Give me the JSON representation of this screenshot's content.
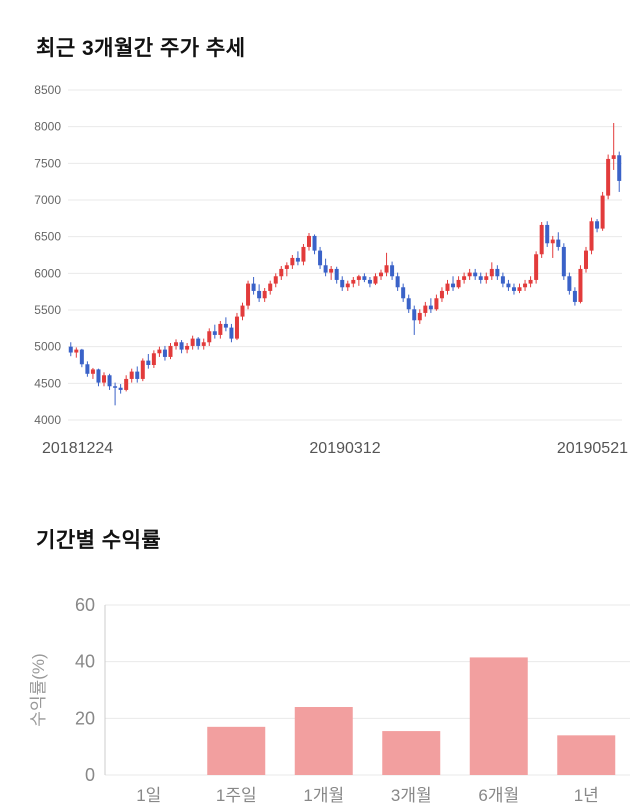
{
  "colors": {
    "grid": "#e9e9e9",
    "axis_line": "#cccccc",
    "price_tick_text": "#666666",
    "date_text": "#555555",
    "bar_tick_text": "#888888",
    "bar_axis_title_text": "#999999"
  },
  "chart_data": [
    {
      "type": "candlestick",
      "title": "최근 3개월간 주가 추세",
      "ylim": [
        4000,
        8500
      ],
      "y_ticks": [
        4000,
        4500,
        5000,
        5500,
        6000,
        6500,
        7000,
        7500,
        8000,
        8500
      ],
      "x_labels": [
        "20181224",
        "20190312",
        "20190521"
      ],
      "up_color": "#e23b3b",
      "down_color": "#3a62c8",
      "ohlc_format": [
        "open",
        "high",
        "low",
        "close"
      ],
      "candles": [
        [
          5000,
          5060,
          4870,
          4920
        ],
        [
          4920,
          4990,
          4850,
          4960
        ],
        [
          4960,
          4970,
          4720,
          4760
        ],
        [
          4760,
          4800,
          4590,
          4630
        ],
        [
          4630,
          4710,
          4560,
          4690
        ],
        [
          4690,
          4700,
          4460,
          4510
        ],
        [
          4510,
          4650,
          4460,
          4610
        ],
        [
          4610,
          4630,
          4410,
          4460
        ],
        [
          4460,
          4510,
          4200,
          4440
        ],
        [
          4440,
          4490,
          4360,
          4410
        ],
        [
          4410,
          4610,
          4390,
          4560
        ],
        [
          4560,
          4700,
          4510,
          4660
        ],
        [
          4660,
          4730,
          4510,
          4560
        ],
        [
          4560,
          4840,
          4530,
          4810
        ],
        [
          4810,
          4900,
          4700,
          4750
        ],
        [
          4750,
          4950,
          4710,
          4910
        ],
        [
          4910,
          5000,
          4860,
          4960
        ],
        [
          4960,
          5010,
          4810,
          4860
        ],
        [
          4860,
          5050,
          4830,
          5010
        ],
        [
          5010,
          5100,
          4960,
          5060
        ],
        [
          5060,
          5090,
          4910,
          4960
        ],
        [
          4960,
          5050,
          4910,
          5010
        ],
        [
          5010,
          5150,
          4960,
          5110
        ],
        [
          5110,
          5130,
          4960,
          5010
        ],
        [
          5010,
          5110,
          4960,
          5060
        ],
        [
          5060,
          5250,
          5010,
          5210
        ],
        [
          5210,
          5300,
          5110,
          5160
        ],
        [
          5160,
          5350,
          5110,
          5310
        ],
        [
          5310,
          5400,
          5210,
          5260
        ],
        [
          5260,
          5310,
          5060,
          5110
        ],
        [
          5110,
          5460,
          5090,
          5410
        ],
        [
          5410,
          5600,
          5360,
          5560
        ],
        [
          5560,
          5900,
          5510,
          5860
        ],
        [
          5860,
          5950,
          5710,
          5760
        ],
        [
          5760,
          5850,
          5610,
          5660
        ],
        [
          5660,
          5800,
          5610,
          5760
        ],
        [
          5760,
          5900,
          5710,
          5860
        ],
        [
          5860,
          6000,
          5810,
          5960
        ],
        [
          5960,
          6100,
          5910,
          6060
        ],
        [
          6060,
          6150,
          5960,
          6110
        ],
        [
          6110,
          6250,
          6060,
          6210
        ],
        [
          6210,
          6300,
          6110,
          6160
        ],
        [
          6160,
          6400,
          6110,
          6360
        ],
        [
          6360,
          6550,
          6310,
          6510
        ],
        [
          6510,
          6530,
          6260,
          6310
        ],
        [
          6310,
          6360,
          6060,
          6110
        ],
        [
          6110,
          6200,
          5960,
          6010
        ],
        [
          6010,
          6100,
          5910,
          6060
        ],
        [
          6060,
          6090,
          5860,
          5910
        ],
        [
          5910,
          5960,
          5760,
          5810
        ],
        [
          5810,
          5900,
          5760,
          5860
        ],
        [
          5860,
          5950,
          5810,
          5910
        ],
        [
          5910,
          5980,
          5830,
          5960
        ],
        [
          5960,
          6000,
          5880,
          5910
        ],
        [
          5910,
          5950,
          5810,
          5860
        ],
        [
          5860,
          6000,
          5840,
          5960
        ],
        [
          5960,
          6050,
          5910,
          6010
        ],
        [
          6010,
          6280,
          5960,
          6110
        ],
        [
          6110,
          6160,
          5910,
          5960
        ],
        [
          5960,
          6010,
          5760,
          5810
        ],
        [
          5810,
          5860,
          5610,
          5660
        ],
        [
          5660,
          5710,
          5460,
          5510
        ],
        [
          5510,
          5560,
          5160,
          5360
        ],
        [
          5360,
          5510,
          5310,
          5460
        ],
        [
          5460,
          5610,
          5410,
          5560
        ],
        [
          5560,
          5660,
          5460,
          5510
        ],
        [
          5510,
          5710,
          5490,
          5660
        ],
        [
          5660,
          5810,
          5610,
          5760
        ],
        [
          5760,
          5910,
          5710,
          5860
        ],
        [
          5860,
          5960,
          5760,
          5810
        ],
        [
          5810,
          5960,
          5790,
          5910
        ],
        [
          5910,
          6010,
          5860,
          5960
        ],
        [
          5960,
          6060,
          5910,
          6010
        ],
        [
          6010,
          6060,
          5910,
          5960
        ],
        [
          5960,
          6010,
          5860,
          5910
        ],
        [
          5910,
          6010,
          5860,
          5960
        ],
        [
          5960,
          6150,
          5910,
          6060
        ],
        [
          6060,
          6110,
          5910,
          5960
        ],
        [
          5960,
          6010,
          5810,
          5860
        ],
        [
          5860,
          5910,
          5760,
          5810
        ],
        [
          5810,
          5860,
          5710,
          5760
        ],
        [
          5760,
          5860,
          5730,
          5810
        ],
        [
          5810,
          5910,
          5760,
          5860
        ],
        [
          5860,
          5960,
          5810,
          5910
        ],
        [
          5910,
          6300,
          5860,
          6260
        ],
        [
          6260,
          6700,
          6210,
          6660
        ],
        [
          6660,
          6710,
          6360,
          6410
        ],
        [
          6410,
          6510,
          6210,
          6460
        ],
        [
          6460,
          6560,
          6310,
          6360
        ],
        [
          6360,
          6410,
          5910,
          5960
        ],
        [
          5960,
          6010,
          5710,
          5760
        ],
        [
          5760,
          5810,
          5560,
          5610
        ],
        [
          5610,
          6110,
          5590,
          6060
        ],
        [
          6060,
          6360,
          6010,
          6310
        ],
        [
          6310,
          6760,
          6260,
          6710
        ],
        [
          6710,
          6740,
          6560,
          6610
        ],
        [
          6610,
          7110,
          6580,
          7060
        ],
        [
          7060,
          7620,
          7010,
          7560
        ],
        [
          7560,
          8050,
          7410,
          7610
        ],
        [
          7610,
          7660,
          7110,
          7260
        ]
      ]
    },
    {
      "type": "bar",
      "title": "기간별 수익률",
      "categories": [
        "1일",
        "1주일",
        "1개월",
        "3개월",
        "6개월",
        "1년"
      ],
      "values": [
        0,
        17,
        24,
        15.5,
        41.5,
        14
      ],
      "ylabel": "수익률(%)",
      "xlabel": "",
      "ylim": [
        0,
        60
      ],
      "y_ticks": [
        0,
        20,
        40,
        60
      ],
      "bar_color": "#f29f9f",
      "grid": true,
      "legend_position": "none"
    }
  ]
}
